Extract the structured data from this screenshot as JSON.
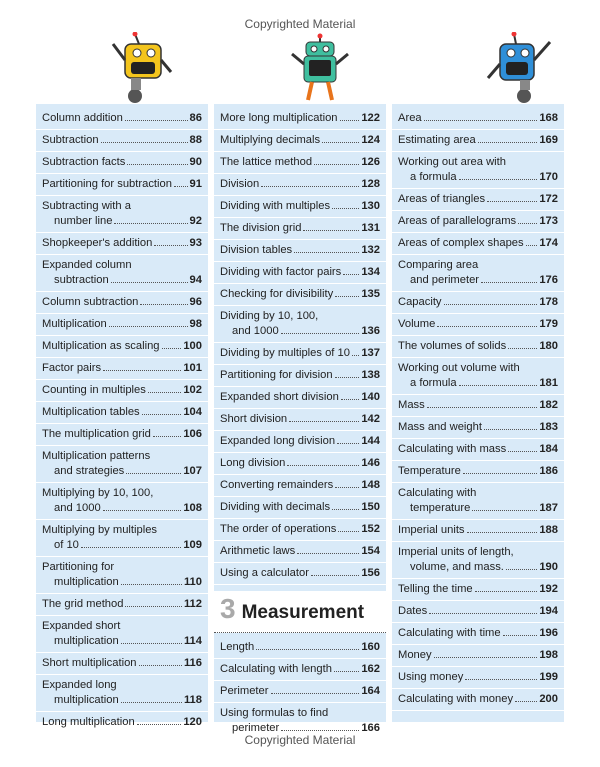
{
  "header": {
    "text": "Copyrighted Material"
  },
  "footer": {
    "text": "Copyrighted Material"
  },
  "columns": [
    {
      "items": [
        {
          "lines": [
            "Column addition"
          ],
          "page": 86
        },
        {
          "lines": [
            "Subtraction"
          ],
          "page": 88
        },
        {
          "lines": [
            "Subtraction facts"
          ],
          "page": 90
        },
        {
          "lines": [
            "Partitioning for subtraction"
          ],
          "page": 91
        },
        {
          "lines": [
            "Subtracting with a",
            "number line"
          ],
          "page": 92
        },
        {
          "lines": [
            "Shopkeeper's addition"
          ],
          "page": 93
        },
        {
          "lines": [
            "Expanded column",
            "subtraction"
          ],
          "page": 94
        },
        {
          "lines": [
            "Column subtraction"
          ],
          "page": 96
        },
        {
          "lines": [
            "Multiplication"
          ],
          "page": 98
        },
        {
          "lines": [
            "Multiplication as scaling"
          ],
          "page": 100
        },
        {
          "lines": [
            "Factor pairs"
          ],
          "page": 101
        },
        {
          "lines": [
            "Counting in multiples"
          ],
          "page": 102
        },
        {
          "lines": [
            "Multiplication tables"
          ],
          "page": 104
        },
        {
          "lines": [
            "The multiplication grid"
          ],
          "page": 106
        },
        {
          "lines": [
            "Multiplication patterns",
            "and strategies"
          ],
          "page": 107
        },
        {
          "lines": [
            "Multiplying by 10, 100,",
            "and 1000"
          ],
          "page": 108
        },
        {
          "lines": [
            "Multiplying by multiples",
            "of 10"
          ],
          "page": 109
        },
        {
          "lines": [
            "Partitioning for",
            "multiplication"
          ],
          "page": 110
        },
        {
          "lines": [
            "The grid method"
          ],
          "page": 112
        },
        {
          "lines": [
            "Expanded short",
            "multiplication"
          ],
          "page": 114
        },
        {
          "lines": [
            "Short multiplication"
          ],
          "page": 116
        },
        {
          "lines": [
            "Expanded long",
            "multiplication"
          ],
          "page": 118
        },
        {
          "lines": [
            "Long multiplication"
          ],
          "page": 120
        }
      ]
    },
    {
      "items": [
        {
          "lines": [
            "More long multiplication"
          ],
          "page": 122
        },
        {
          "lines": [
            "Multiplying decimals"
          ],
          "page": 124
        },
        {
          "lines": [
            "The lattice method"
          ],
          "page": 126
        },
        {
          "lines": [
            "Division"
          ],
          "page": 128
        },
        {
          "lines": [
            "Dividing with multiples"
          ],
          "page": 130
        },
        {
          "lines": [
            "The division grid"
          ],
          "page": 131
        },
        {
          "lines": [
            "Division tables"
          ],
          "page": 132
        },
        {
          "lines": [
            "Dividing with factor pairs"
          ],
          "page": 134
        },
        {
          "lines": [
            "Checking for divisibility"
          ],
          "page": 135
        },
        {
          "lines": [
            "Dividing by 10, 100,",
            "and 1000"
          ],
          "page": 136
        },
        {
          "lines": [
            "Dividing by multiples of 10"
          ],
          "page": 137
        },
        {
          "lines": [
            "Partitioning for division"
          ],
          "page": 138
        },
        {
          "lines": [
            "Expanded short division"
          ],
          "page": 140
        },
        {
          "lines": [
            "Short division"
          ],
          "page": 142
        },
        {
          "lines": [
            "Expanded long division"
          ],
          "page": 144
        },
        {
          "lines": [
            "Long division"
          ],
          "page": 146
        },
        {
          "lines": [
            "Converting remainders"
          ],
          "page": 148
        },
        {
          "lines": [
            "Dividing with decimals"
          ],
          "page": 150
        },
        {
          "lines": [
            "The order of operations"
          ],
          "page": 152
        },
        {
          "lines": [
            "Arithmetic laws"
          ],
          "page": 154
        },
        {
          "lines": [
            "Using a calculator"
          ],
          "page": 156
        },
        {
          "section_number": "3",
          "section_title": "Measurement"
        },
        {
          "lines": [
            "Length"
          ],
          "page": 160
        },
        {
          "lines": [
            "Calculating with length"
          ],
          "page": 162
        },
        {
          "lines": [
            "Perimeter"
          ],
          "page": 164
        },
        {
          "lines": [
            "Using formulas to find",
            "perimeter"
          ],
          "page": 166
        }
      ]
    },
    {
      "items": [
        {
          "lines": [
            "Area"
          ],
          "page": 168
        },
        {
          "lines": [
            "Estimating area"
          ],
          "page": 169
        },
        {
          "lines": [
            "Working out area with",
            "a formula"
          ],
          "page": 170
        },
        {
          "lines": [
            "Areas of triangles"
          ],
          "page": 172
        },
        {
          "lines": [
            "Areas of parallelograms"
          ],
          "page": 173
        },
        {
          "lines": [
            "Areas of complex shapes"
          ],
          "page": 174
        },
        {
          "lines": [
            "Comparing area",
            "and perimeter"
          ],
          "page": 176
        },
        {
          "lines": [
            "Capacity"
          ],
          "page": 178
        },
        {
          "lines": [
            "Volume"
          ],
          "page": 179
        },
        {
          "lines": [
            "The volumes of solids"
          ],
          "page": 180
        },
        {
          "lines": [
            "Working out volume with",
            "a formula"
          ],
          "page": 181
        },
        {
          "lines": [
            "Mass"
          ],
          "page": 182
        },
        {
          "lines": [
            "Mass and weight"
          ],
          "page": 183
        },
        {
          "lines": [
            "Calculating with mass"
          ],
          "page": 184
        },
        {
          "lines": [
            "Temperature"
          ],
          "page": 186
        },
        {
          "lines": [
            "Calculating with",
            "temperature"
          ],
          "page": 187
        },
        {
          "lines": [
            "Imperial units"
          ],
          "page": 188
        },
        {
          "lines": [
            "Imperial units of length,",
            "volume, and mass."
          ],
          "page": 190
        },
        {
          "lines": [
            "Telling the time"
          ],
          "page": 192
        },
        {
          "lines": [
            "Dates"
          ],
          "page": 194
        },
        {
          "lines": [
            "Calculating with time"
          ],
          "page": 196
        },
        {
          "lines": [
            "Money"
          ],
          "page": 198
        },
        {
          "lines": [
            "Using money"
          ],
          "page": 199
        },
        {
          "lines": [
            "Calculating with money"
          ],
          "page": 200
        }
      ]
    }
  ]
}
